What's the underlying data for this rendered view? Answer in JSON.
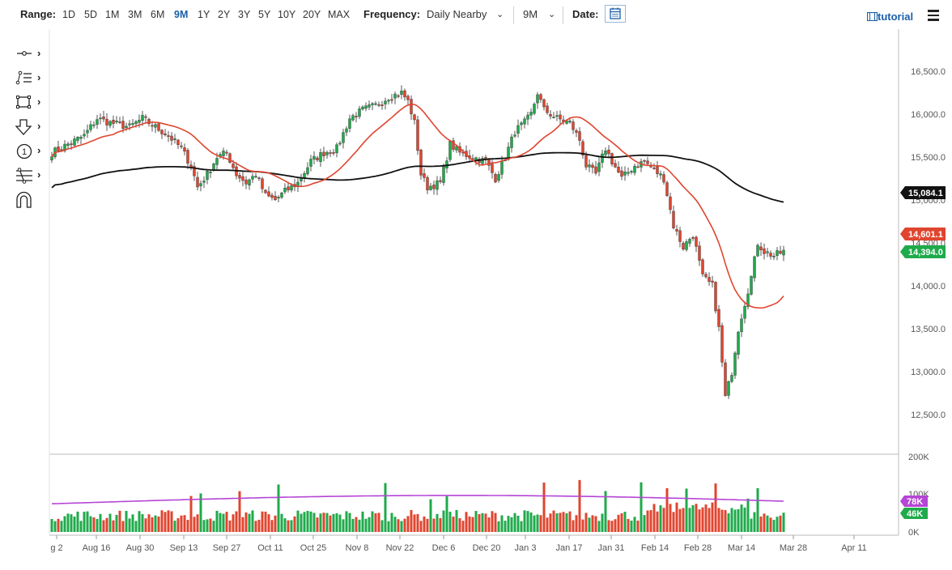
{
  "toolbar": {
    "range_label": "Range:",
    "ranges": [
      "1D",
      "5D",
      "1M",
      "3M",
      "6M",
      "9M",
      "1Y",
      "2Y",
      "3Y",
      "5Y",
      "10Y",
      "20Y",
      "MAX"
    ],
    "active_range": "9M",
    "frequency_label": "Frequency:",
    "frequency_value": "Daily Nearby",
    "period_value": "9M",
    "date_label": "Date:",
    "tutorial_label": "tutorial"
  },
  "tools": [
    "crosshair-icon",
    "trendline-icon",
    "rectangle-icon",
    "arrow-down-icon",
    "annotation-1-icon",
    "fibonacci-icon",
    "magnet-icon"
  ],
  "colors": {
    "up": "#1faa4b",
    "down": "#e0452f",
    "ma_short": "#e0452f",
    "ma_long": "#111111",
    "vol_ma": "#b545d6"
  },
  "chart_data": {
    "type": "candlestick",
    "price_axis": {
      "ylim": [
        12200,
        16800
      ],
      "ticks": [
        "16,500.0",
        "16,000.0",
        "15,500.0",
        "15,000.0",
        "14,500.0",
        "14,000.0",
        "13,500.0",
        "13,000.0",
        "12,500.0"
      ],
      "tick_values": [
        16500,
        16000,
        15500,
        15000,
        14500,
        14000,
        13500,
        13000,
        12500
      ]
    },
    "x_axis": {
      "ticks": [
        "g 2",
        "Aug 16",
        "Aug 30",
        "Sep 13",
        "Sep 27",
        "Oct 11",
        "Oct 25",
        "Nov 8",
        "Nov 22",
        "Dec 6",
        "Dec 20",
        "Jan 3",
        "Jan 17",
        "Jan 31",
        "Feb 14",
        "Feb 28",
        "Mar 14",
        "Mar 28",
        "Apr 11"
      ]
    },
    "badges": [
      {
        "label": "15,084.1",
        "value": 15084.1,
        "color": "#111111"
      },
      {
        "label": "14,601.1",
        "value": 14601.1,
        "color": "#e0452f"
      },
      {
        "label": "14,394.0",
        "value": 14394.0,
        "color": "#1faa4b"
      }
    ],
    "volume_axis": {
      "ylim": [
        0,
        200
      ],
      "ticks": [
        "200K",
        "100K",
        "0K"
      ],
      "tick_values": [
        200,
        100,
        0
      ]
    },
    "volume_badges": [
      {
        "label": "78K",
        "value": 78,
        "color": "#b545d6"
      },
      {
        "label": "46K",
        "value": 46,
        "color": "#1faa4b"
      }
    ],
    "anchors": [
      [
        0,
        15550
      ],
      [
        5,
        15650
      ],
      [
        10,
        15750
      ],
      [
        14,
        15950
      ],
      [
        18,
        15900
      ],
      [
        24,
        15850
      ],
      [
        28,
        15950
      ],
      [
        32,
        15850
      ],
      [
        36,
        15750
      ],
      [
        40,
        15600
      ],
      [
        43,
        15400
      ],
      [
        45,
        15150
      ],
      [
        48,
        15300
      ],
      [
        51,
        15500
      ],
      [
        54,
        15550
      ],
      [
        57,
        15300
      ],
      [
        60,
        15200
      ],
      [
        63,
        15300
      ],
      [
        66,
        15050
      ],
      [
        69,
        15000
      ],
      [
        72,
        15100
      ],
      [
        76,
        15200
      ],
      [
        80,
        15450
      ],
      [
        84,
        15550
      ],
      [
        88,
        15600
      ],
      [
        92,
        15950
      ],
      [
        96,
        16050
      ],
      [
        100,
        16100
      ],
      [
        104,
        16200
      ],
      [
        108,
        16250
      ],
      [
        110,
        16150
      ],
      [
        112,
        15900
      ],
      [
        114,
        15300
      ],
      [
        116,
        15150
      ],
      [
        120,
        15200
      ],
      [
        123,
        15650
      ],
      [
        126,
        15550
      ],
      [
        130,
        15500
      ],
      [
        134,
        15450
      ],
      [
        137,
        15250
      ],
      [
        140,
        15500
      ],
      [
        143,
        15800
      ],
      [
        146,
        15900
      ],
      [
        148,
        16000
      ],
      [
        150,
        16250
      ],
      [
        152,
        16050
      ],
      [
        156,
        15950
      ],
      [
        160,
        15900
      ],
      [
        163,
        15700
      ],
      [
        165,
        15400
      ],
      [
        168,
        15300
      ],
      [
        171,
        15600
      ],
      [
        173,
        15450
      ],
      [
        176,
        15250
      ],
      [
        180,
        15400
      ],
      [
        183,
        15450
      ],
      [
        186,
        15350
      ],
      [
        189,
        15250
      ],
      [
        192,
        14700
      ],
      [
        195,
        14450
      ],
      [
        198,
        14600
      ],
      [
        201,
        14100
      ],
      [
        204,
        14000
      ],
      [
        206,
        13500
      ],
      [
        208,
        12700
      ],
      [
        210,
        13000
      ],
      [
        212,
        13500
      ],
      [
        214,
        13800
      ],
      [
        216,
        14100
      ],
      [
        218,
        14500
      ],
      [
        220,
        14400
      ],
      [
        223,
        14350
      ],
      [
        226,
        14400
      ]
    ],
    "volume": {
      "start": 70,
      "end": 40,
      "peak_indices": [
        43,
        46,
        58,
        70,
        103,
        117,
        122,
        152,
        163,
        171,
        182,
        190,
        196,
        205,
        215,
        218
      ]
    }
  }
}
